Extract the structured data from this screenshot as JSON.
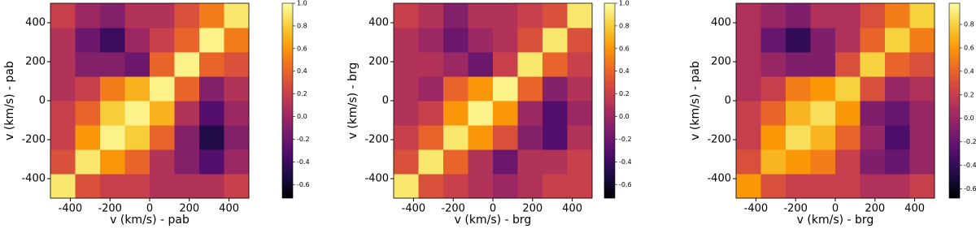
{
  "chart_data": [
    {
      "type": "heatmap",
      "xlabel": "v (km/s) - pab",
      "ylabel": "v (km/s) - pab",
      "xlim": [
        -500,
        500
      ],
      "ylim": [
        -500,
        500
      ],
      "xticks": [
        -400,
        -200,
        0,
        200,
        400
      ],
      "yticks": [
        -400,
        -200,
        0,
        200,
        400
      ],
      "colormap": "inferno",
      "clim": [
        -0.72,
        1.0
      ],
      "cticks": [
        -0.6,
        -0.4,
        -0.2,
        {
          "value": 0,
          "label": "0.0"
        },
        0.2,
        0.4,
        0.6,
        0.8,
        {
          "value": 1,
          "label": "1.0"
        }
      ],
      "z": [
        [
          0.9,
          0.3,
          0.2,
          0.2,
          0.1,
          0.1,
          0.1,
          0.2
        ],
        [
          0.3,
          0.9,
          0.6,
          0.4,
          0.1,
          -0.1,
          -0.3,
          0.0
        ],
        [
          0.2,
          0.6,
          0.95,
          0.8,
          0.4,
          -0.1,
          -0.5,
          -0.1
        ],
        [
          0.2,
          0.4,
          0.8,
          0.95,
          0.7,
          0.1,
          -0.3,
          0.0
        ],
        [
          0.1,
          0.2,
          0.5,
          0.7,
          0.95,
          0.4,
          -0.1,
          0.1
        ],
        [
          0.1,
          -0.1,
          -0.1,
          -0.2,
          0.4,
          0.95,
          0.4,
          0.3
        ],
        [
          0.1,
          -0.2,
          -0.4,
          0.0,
          0.2,
          0.4,
          0.95,
          0.5
        ],
        [
          0.2,
          0.0,
          -0.1,
          0.1,
          0.1,
          0.3,
          0.5,
          0.9
        ]
      ]
    },
    {
      "type": "heatmap",
      "xlabel": "v (km/s) - brg",
      "ylabel": "v (km/s) - brg",
      "xlim": [
        -500,
        500
      ],
      "ylim": [
        -500,
        500
      ],
      "xticks": [
        -400,
        -200,
        0,
        200,
        400
      ],
      "yticks": [
        -400,
        -200,
        0,
        200,
        400
      ],
      "colormap": "inferno",
      "clim": [
        -0.72,
        1.0
      ],
      "cticks": [
        -0.6,
        -0.4,
        -0.2,
        {
          "value": 0,
          "label": "0.0"
        },
        0.2,
        0.4,
        0.6,
        0.8,
        {
          "value": 1,
          "label": "1.0"
        }
      ],
      "z": [
        [
          0.9,
          0.3,
          0.2,
          0.1,
          0.0,
          0.1,
          0.2,
          0.2
        ],
        [
          0.3,
          0.9,
          0.4,
          0.1,
          -0.2,
          0.1,
          0.1,
          0.2
        ],
        [
          0.2,
          0.4,
          0.9,
          0.6,
          0.3,
          -0.1,
          -0.3,
          0.1
        ],
        [
          0.1,
          0.2,
          0.6,
          0.95,
          0.6,
          0.0,
          -0.3,
          0.0
        ],
        [
          0.1,
          0.0,
          0.4,
          0.6,
          0.95,
          0.4,
          -0.1,
          0.1
        ],
        [
          0.1,
          0.1,
          0.0,
          -0.2,
          0.2,
          0.9,
          0.4,
          0.2
        ],
        [
          0.1,
          0.0,
          -0.2,
          0.0,
          0.1,
          0.3,
          0.9,
          0.3
        ],
        [
          0.2,
          0.1,
          -0.1,
          0.1,
          0.1,
          0.2,
          0.3,
          0.9
        ]
      ]
    },
    {
      "type": "heatmap",
      "xlabel": "v (km/s) - brg",
      "ylabel": "v (km/s) - pab",
      "xlim": [
        -500,
        500
      ],
      "ylim": [
        -500,
        500
      ],
      "xticks": [
        -400,
        -200,
        0,
        200,
        400
      ],
      "yticks": [
        -400,
        -200,
        0,
        200,
        400
      ],
      "colormap": "inferno",
      "clim": [
        -0.68,
        0.98
      ],
      "cticks": [
        -0.6,
        -0.4,
        -0.2,
        {
          "value": 0,
          "label": "0.0"
        },
        0.2,
        0.4,
        0.6,
        0.8
      ],
      "z": [
        [
          0.6,
          0.3,
          0.2,
          0.2,
          0.2,
          0.1,
          0.1,
          0.2
        ],
        [
          0.3,
          0.7,
          0.6,
          0.5,
          0.2,
          -0.1,
          -0.2,
          0.0
        ],
        [
          0.2,
          0.6,
          0.85,
          0.7,
          0.4,
          0.0,
          -0.3,
          0.0
        ],
        [
          0.2,
          0.4,
          0.7,
          0.85,
          0.6,
          -0.1,
          -0.2,
          0.0
        ],
        [
          0.1,
          0.2,
          0.5,
          0.6,
          0.8,
          0.3,
          0.0,
          0.1
        ],
        [
          0.1,
          0.0,
          -0.1,
          -0.1,
          0.3,
          0.8,
          0.4,
          0.3
        ],
        [
          0.1,
          -0.2,
          -0.4,
          -0.1,
          0.1,
          0.4,
          0.8,
          0.5
        ],
        [
          0.1,
          0.0,
          -0.1,
          0.1,
          0.1,
          0.3,
          0.5,
          0.8
        ]
      ]
    }
  ]
}
